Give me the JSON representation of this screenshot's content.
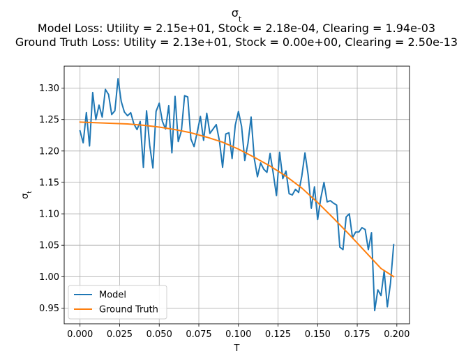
{
  "chart_data": {
    "type": "line",
    "title": "σ_t",
    "subtitle_lines": [
      "Model Loss: Utility = 2.15e+01, Stock = 2.18e-04, Clearing = 1.94e-03",
      "Ground Truth Loss: Utility = 2.13e+01, Stock = 0.00e+00, Clearing = 2.50e-13"
    ],
    "xlabel": "T",
    "ylabel": "σ_t",
    "xlim": [
      -0.01,
      0.208
    ],
    "ylim": [
      0.925,
      1.335
    ],
    "x_ticks": [
      0.0,
      0.025,
      0.05,
      0.075,
      0.1,
      0.125,
      0.15,
      0.175,
      0.2
    ],
    "x_tick_labels": [
      "0.000",
      "0.025",
      "0.050",
      "0.075",
      "0.100",
      "0.125",
      "0.150",
      "0.175",
      "0.200"
    ],
    "y_ticks": [
      0.95,
      1.0,
      1.05,
      1.1,
      1.15,
      1.2,
      1.25,
      1.3
    ],
    "y_tick_labels": [
      "0.95",
      "1.00",
      "1.05",
      "1.10",
      "1.15",
      "1.20",
      "1.25",
      "1.30"
    ],
    "grid": true,
    "legend_position": "lower-left",
    "series": [
      {
        "name": "Model",
        "color": "#1f77b4",
        "x_start": 0.0,
        "x_step": 0.002,
        "values": [
          1.232,
          1.213,
          1.261,
          1.208,
          1.293,
          1.25,
          1.273,
          1.254,
          1.298,
          1.29,
          1.258,
          1.264,
          1.315,
          1.279,
          1.262,
          1.256,
          1.261,
          1.243,
          1.234,
          1.247,
          1.174,
          1.264,
          1.209,
          1.173,
          1.263,
          1.276,
          1.247,
          1.235,
          1.272,
          1.197,
          1.287,
          1.215,
          1.232,
          1.288,
          1.286,
          1.219,
          1.207,
          1.23,
          1.255,
          1.217,
          1.26,
          1.228,
          1.235,
          1.242,
          1.216,
          1.174,
          1.227,
          1.229,
          1.188,
          1.241,
          1.263,
          1.239,
          1.185,
          1.212,
          1.254,
          1.188,
          1.159,
          1.181,
          1.171,
          1.166,
          1.196,
          1.164,
          1.129,
          1.198,
          1.156,
          1.168,
          1.132,
          1.13,
          1.139,
          1.134,
          1.16,
          1.197,
          1.162,
          1.109,
          1.143,
          1.091,
          1.125,
          1.15,
          1.119,
          1.121,
          1.117,
          1.114,
          1.047,
          1.043,
          1.095,
          1.1,
          1.062,
          1.071,
          1.071,
          1.078,
          1.075,
          1.043,
          1.07,
          0.946,
          0.979,
          0.97,
          1.009,
          0.952,
          0.99,
          1.051
        ]
      },
      {
        "name": "Ground Truth",
        "color": "#ff7f0e",
        "x": [
          0.0,
          0.01,
          0.02,
          0.03,
          0.04,
          0.05,
          0.06,
          0.07,
          0.08,
          0.09,
          0.1,
          0.11,
          0.12,
          0.13,
          0.14,
          0.15,
          0.16,
          0.17,
          0.18,
          0.19,
          0.198
        ],
        "values": [
          1.246,
          1.245,
          1.244,
          1.243,
          1.241,
          1.238,
          1.234,
          1.229,
          1.222,
          1.214,
          1.203,
          1.19,
          1.176,
          1.16,
          1.141,
          1.118,
          1.093,
          1.067,
          1.04,
          1.013,
          1.0
        ]
      }
    ]
  }
}
